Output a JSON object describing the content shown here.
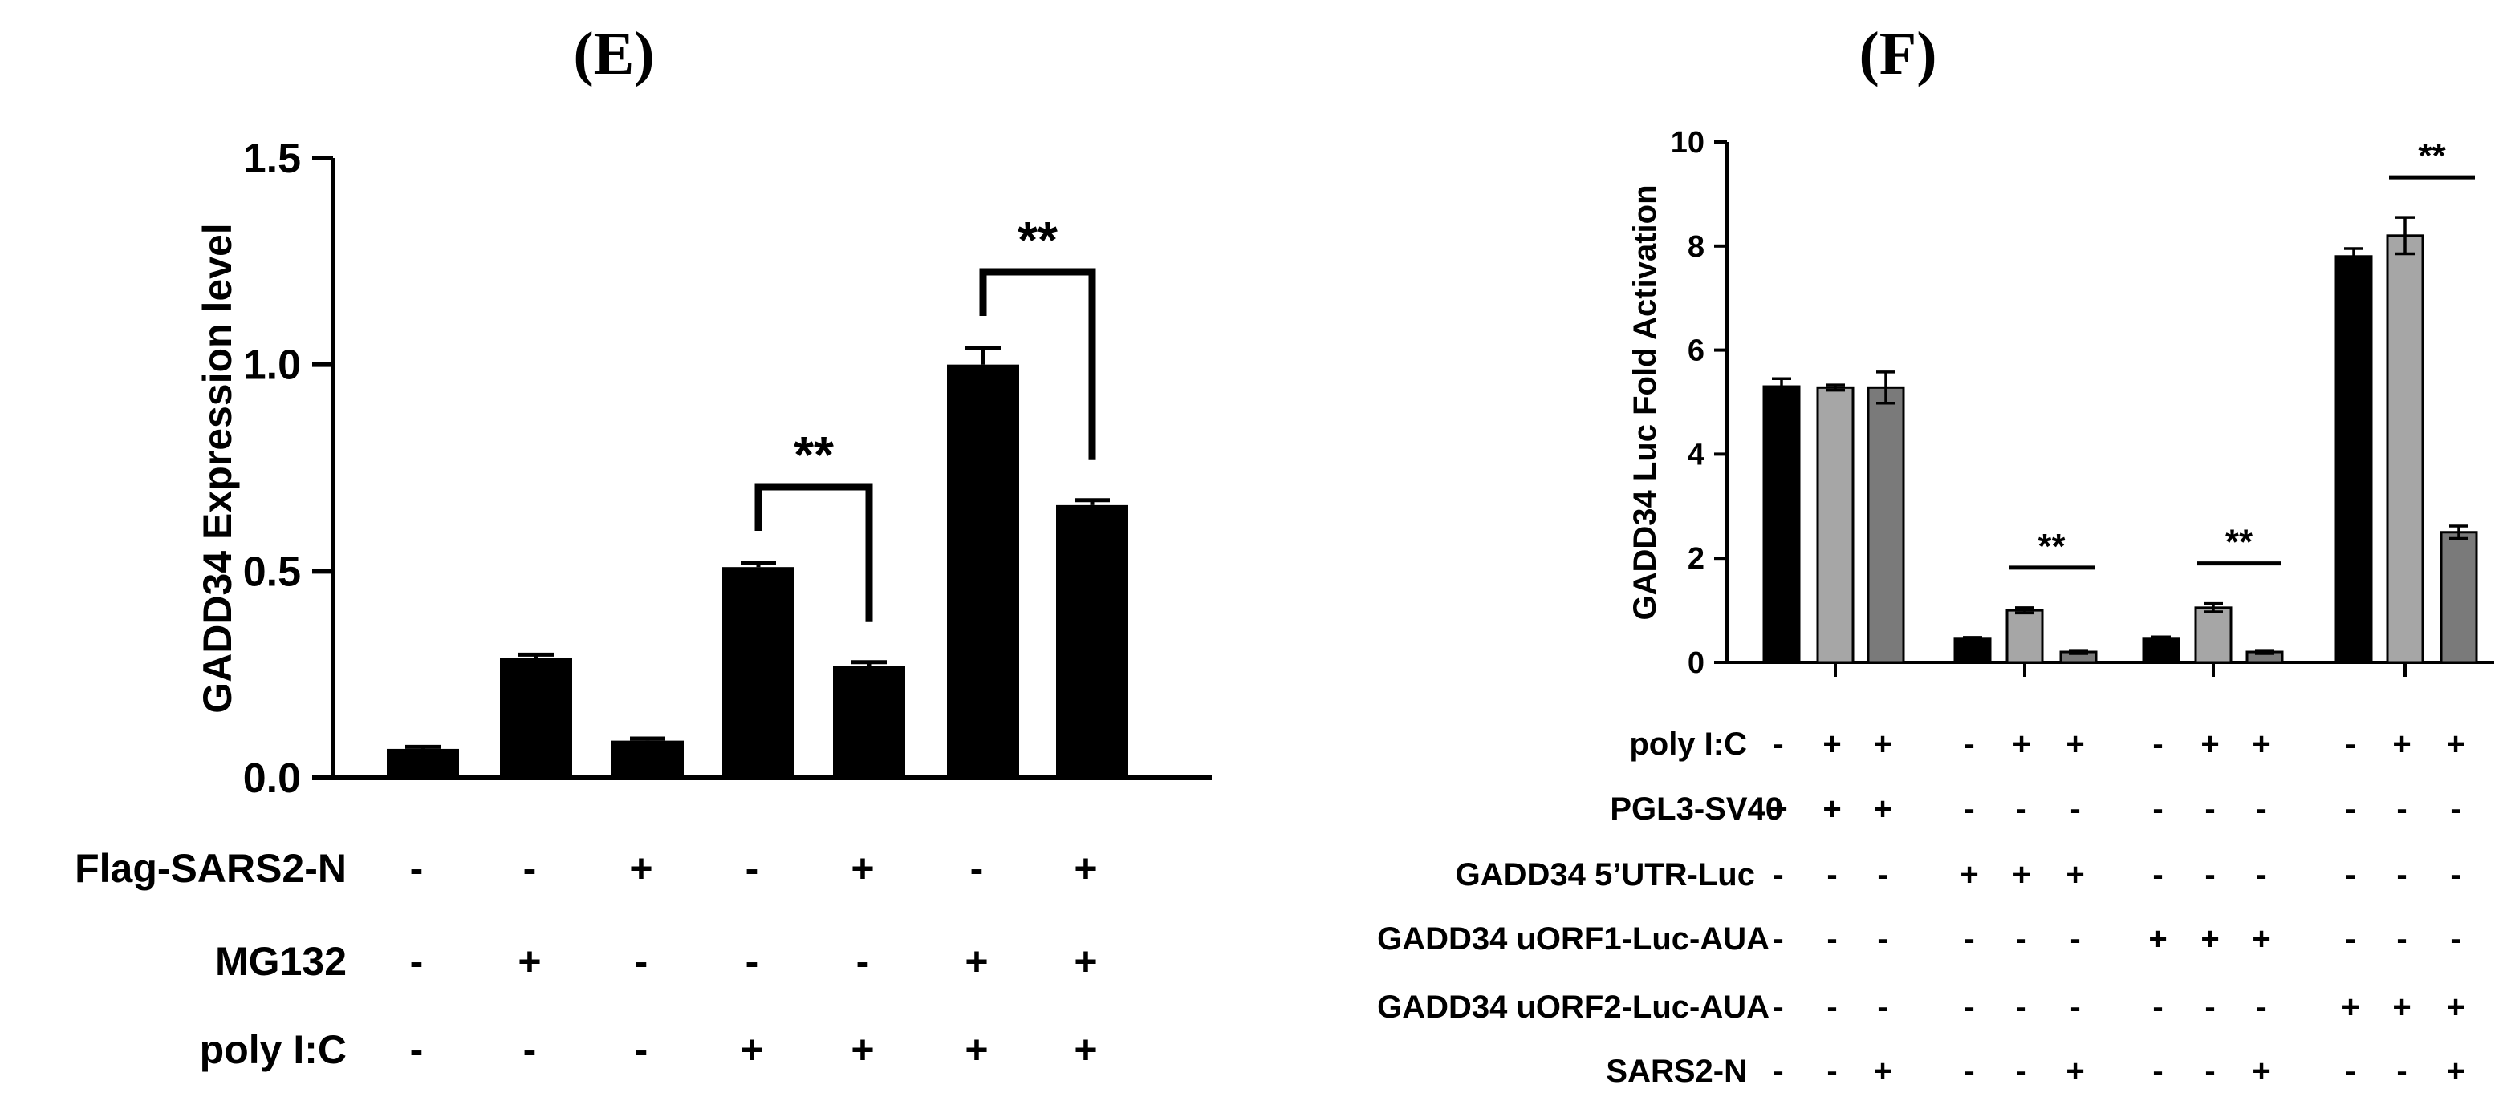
{
  "chart_data": [
    {
      "panel": "(E)",
      "type": "bar",
      "ylabel": "GADD34 Expression level",
      "ylim": [
        0,
        1.5
      ],
      "yticks": [
        "0.0",
        "0.5",
        "1.0",
        "1.5"
      ],
      "bar_colors": [
        "#000000"
      ],
      "values": [
        0.07,
        0.29,
        0.09,
        0.51,
        0.27,
        1.0,
        0.66
      ],
      "errors": [
        0.005,
        0.008,
        0.005,
        0.01,
        0.01,
        0.04,
        0.012
      ],
      "condition_rows": [
        {
          "label": "Flag-SARS2-N",
          "signs": [
            "-",
            "-",
            "+",
            "-",
            "+",
            "-",
            "+"
          ]
        },
        {
          "label": "MG132",
          "signs": [
            "-",
            "+",
            "-",
            "-",
            "-",
            "+",
            "+"
          ]
        },
        {
          "label": "poly I:C",
          "signs": [
            "-",
            "-",
            "-",
            "+",
            "+",
            "+",
            "+"
          ]
        }
      ],
      "significance": [
        {
          "from_bar": 3,
          "to_bar": 4,
          "label": "**"
        },
        {
          "from_bar": 5,
          "to_bar": 6,
          "label": "**"
        }
      ]
    },
    {
      "panel": "(F)",
      "type": "bar",
      "ylabel": "GADD34 Luc Fold Activation",
      "ylim": [
        0,
        10
      ],
      "yticks": [
        "0",
        "2",
        "4",
        "6",
        "8",
        "10"
      ],
      "series_colors": [
        "#000000",
        "#a6a6a6",
        "#7a7a7a"
      ],
      "values": [
        5.3,
        5.28,
        5.28,
        0.45,
        1.0,
        0.2,
        0.45,
        1.05,
        0.2,
        7.8,
        8.2,
        2.5
      ],
      "errors": [
        0.15,
        0.05,
        0.3,
        0.03,
        0.05,
        0.03,
        0.04,
        0.08,
        0.03,
        0.15,
        0.35,
        0.12
      ],
      "condition_rows": [
        {
          "label": "poly I:C",
          "signs": [
            "-",
            "+",
            "+",
            "-",
            "+",
            "+",
            "-",
            "+",
            "+",
            "-",
            "+",
            "+"
          ]
        },
        {
          "label": "PGL3-SV40",
          "signs": [
            "+",
            "+",
            "+",
            "-",
            "-",
            "-",
            "-",
            "-",
            "-",
            "-",
            "-",
            "-"
          ]
        },
        {
          "label": "GADD34 5’UTR-Luc",
          "signs": [
            "-",
            "-",
            "-",
            "+",
            "+",
            "+",
            "-",
            "-",
            "-",
            "-",
            "-",
            "-"
          ]
        },
        {
          "label": "GADD34 uORF1-Luc-AUA",
          "signs": [
            "-",
            "-",
            "-",
            "-",
            "-",
            "-",
            "+",
            "+",
            "+",
            "-",
            "-",
            "-"
          ]
        },
        {
          "label": "GADD34 uORF2-Luc-AUA",
          "signs": [
            "-",
            "-",
            "-",
            "-",
            "-",
            "-",
            "-",
            "-",
            "-",
            "+",
            "+",
            "+"
          ]
        },
        {
          "label": "SARS2-N",
          "signs": [
            "-",
            "-",
            "+",
            "-",
            "-",
            "+",
            "-",
            "-",
            "+",
            "-",
            "-",
            "+"
          ]
        }
      ],
      "significance": [
        {
          "from_bar": 4,
          "to_bar": 5,
          "label": "**"
        },
        {
          "from_bar": 7,
          "to_bar": 8,
          "label": "**"
        },
        {
          "from_bar": 10,
          "to_bar": 11,
          "label": "**"
        }
      ]
    }
  ]
}
